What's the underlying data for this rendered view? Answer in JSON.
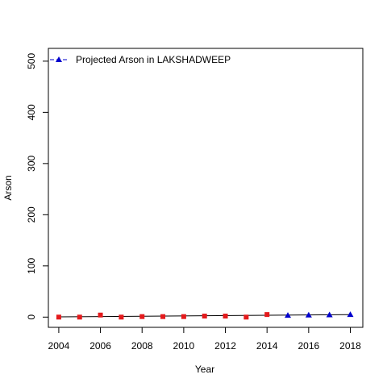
{
  "chart_data": {
    "type": "scatter",
    "title": "",
    "xlabel": "Year",
    "ylabel": "Arson",
    "xlim": [
      2003.5,
      2018.6
    ],
    "ylim": [
      -20,
      525
    ],
    "xticks": [
      2004,
      2006,
      2008,
      2010,
      2012,
      2014,
      2016,
      2018
    ],
    "yticks": [
      0,
      100,
      200,
      300,
      400,
      500
    ],
    "grid": false,
    "legend_position": "top-left",
    "trend_line": {
      "x": [
        2004,
        2018
      ],
      "y": [
        0.5,
        4.8
      ]
    },
    "series": [
      {
        "name": "",
        "marker": "square",
        "color": "#e41a1c",
        "x": [
          2004,
          2005,
          2006,
          2007,
          2008,
          2009,
          2010,
          2011,
          2012,
          2013,
          2014
        ],
        "y": [
          0,
          0,
          4,
          0,
          1,
          1,
          1,
          2,
          2,
          0,
          5
        ]
      },
      {
        "name": "Projected Arson  in  LAKSHADWEEP",
        "marker": "triangle",
        "color": "#0000cd",
        "x": [
          2015,
          2016,
          2017,
          2018
        ],
        "y": [
          3.5,
          4,
          4.5,
          5
        ]
      }
    ]
  }
}
